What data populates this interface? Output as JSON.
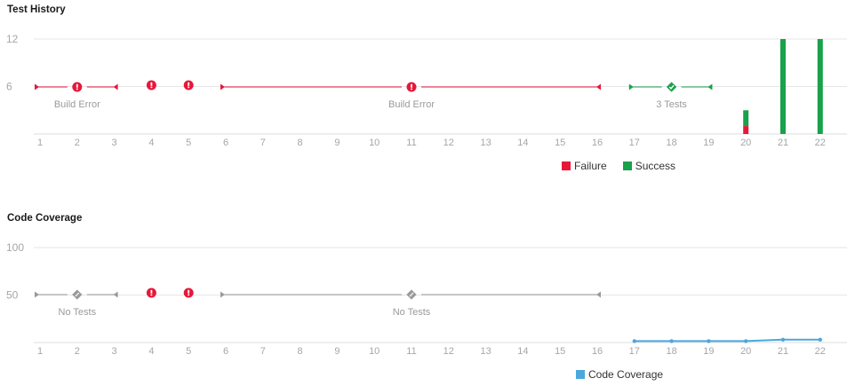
{
  "colors": {
    "failure": "#e8173a",
    "success": "#19a14b",
    "neutral": "#9a9a9a",
    "coverage": "#4aa8dc",
    "grid": "#e6e6e6",
    "tick_text": "#a6a6a6",
    "annotation_text": "#9a9a9a"
  },
  "chart_data": [
    {
      "type": "bar",
      "title": "Test History",
      "x": [
        1,
        2,
        3,
        4,
        5,
        6,
        7,
        8,
        9,
        10,
        11,
        12,
        13,
        14,
        15,
        16,
        17,
        18,
        19,
        20,
        21,
        22
      ],
      "x_tick_labels": [
        "1",
        "2",
        "3",
        "4",
        "5",
        "6",
        "7",
        "8",
        "9",
        "10",
        "11",
        "12",
        "13",
        "14",
        "15",
        "16",
        "17",
        "18",
        "19",
        "20",
        "21",
        "22"
      ],
      "y_ticks": [
        6,
        12
      ],
      "ylim": [
        0,
        12
      ],
      "grid": true,
      "legend": [
        {
          "label": "Failure",
          "color": "#e8173a"
        },
        {
          "label": "Success",
          "color": "#19a14b"
        }
      ],
      "series": [
        {
          "name": "Failure",
          "values": [
            0,
            0,
            0,
            0,
            0,
            0,
            0,
            0,
            0,
            0,
            0,
            0,
            0,
            0,
            0,
            0,
            0,
            0,
            0,
            1,
            0,
            0
          ]
        },
        {
          "name": "Success",
          "values": [
            0,
            0,
            0,
            0,
            0,
            0,
            0,
            0,
            0,
            0,
            0,
            0,
            0,
            0,
            0,
            0,
            0,
            0,
            0,
            2,
            12,
            12
          ]
        }
      ],
      "ranges": [
        {
          "start": 1,
          "end": 3,
          "marker_x": 2,
          "status": "error",
          "label": "Build Error"
        },
        {
          "start": 6,
          "end": 16,
          "marker_x": 11,
          "status": "error",
          "label": "Build Error"
        },
        {
          "start": 17,
          "end": 19,
          "marker_x": 18,
          "status": "success",
          "label": "3 Tests"
        }
      ],
      "markers": [
        {
          "x": 4,
          "status": "error"
        },
        {
          "x": 5,
          "status": "error"
        }
      ]
    },
    {
      "type": "line",
      "title": "Code Coverage",
      "x": [
        1,
        2,
        3,
        4,
        5,
        6,
        7,
        8,
        9,
        10,
        11,
        12,
        13,
        14,
        15,
        16,
        17,
        18,
        19,
        20,
        21,
        22
      ],
      "x_tick_labels": [
        "1",
        "2",
        "3",
        "4",
        "5",
        "6",
        "7",
        "8",
        "9",
        "10",
        "11",
        "12",
        "13",
        "14",
        "15",
        "16",
        "17",
        "18",
        "19",
        "20",
        "21",
        "22"
      ],
      "y_ticks": [
        50,
        100
      ],
      "ylim": [
        0,
        100
      ],
      "grid": true,
      "legend": [
        {
          "label": "Code Coverage",
          "color": "#4aa8dc"
        }
      ],
      "series": [
        {
          "name": "Code Coverage",
          "points": [
            [
              17,
              1.5
            ],
            [
              18,
              1.5
            ],
            [
              19,
              1.5
            ],
            [
              20,
              1.5
            ],
            [
              21,
              3
            ],
            [
              22,
              3
            ]
          ]
        }
      ],
      "ranges": [
        {
          "start": 1,
          "end": 3,
          "marker_x": 2,
          "status": "none",
          "label": "No Tests"
        },
        {
          "start": 6,
          "end": 16,
          "marker_x": 11,
          "status": "none",
          "label": "No Tests"
        }
      ],
      "markers": [
        {
          "x": 4,
          "status": "error"
        },
        {
          "x": 5,
          "status": "error"
        }
      ]
    }
  ]
}
